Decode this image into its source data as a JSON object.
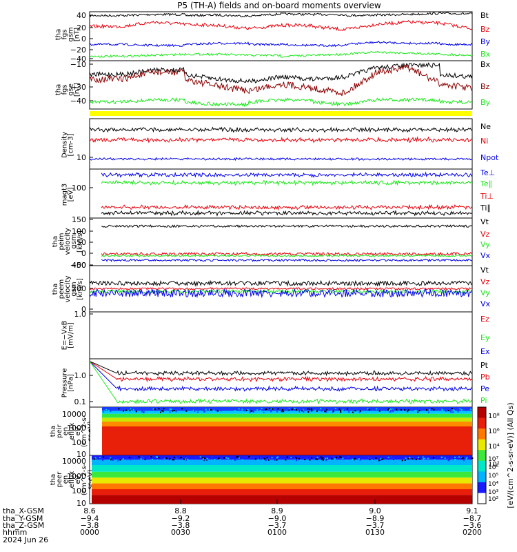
{
  "title": "P5 (TH-A) fields and on-board moments overview",
  "colors": {
    "black": "#000000",
    "red": "#e8000b",
    "green": "#19e819",
    "blue": "#0000e8",
    "yellow": "#ffff00",
    "darkred": "#8b0000"
  },
  "chart_data": [
    {
      "type": "line",
      "panel": "fgs",
      "ylabel": [
        "tha",
        "fgs",
        "gsm",
        "[nT]"
      ],
      "yticks": [
        "40",
        "20",
        "0",
        "−20",
        "−40"
      ],
      "ylim": [
        -45,
        45
      ],
      "series": [
        {
          "name": "Bt",
          "color": "black",
          "level": 38,
          "noise": 2,
          "drift": [
            0,
            0,
            2,
            0,
            1,
            -1,
            3,
            2,
            0,
            1,
            2,
            4,
            3
          ]
        },
        {
          "name": "Bz",
          "color": "red",
          "level": 18,
          "noise": 3,
          "drift": [
            0,
            0,
            8,
            4,
            2,
            -4,
            2,
            0,
            -6,
            4,
            8,
            6,
            -4
          ]
        },
        {
          "name": "By",
          "color": "blue",
          "level": -15,
          "noise": 2,
          "drift": [
            0,
            0,
            -2,
            0,
            2,
            0,
            0,
            -2,
            0,
            4,
            2,
            0,
            0
          ]
        },
        {
          "name": "Bx",
          "color": "green",
          "level": -37,
          "noise": 2,
          "drift": [
            0,
            0,
            2,
            4,
            4,
            2,
            0,
            2,
            4,
            8,
            6,
            4,
            2
          ]
        }
      ]
    },
    {
      "type": "line",
      "panel": "fgs_gse",
      "ylabel": [
        "tha",
        "fgs",
        "gse",
        "[nT]"
      ],
      "yticks": [
        "−10",
        "−30",
        "−40"
      ],
      "ylim": [
        -50,
        -8
      ],
      "series": [
        {
          "name": "Bx",
          "color": "black",
          "level": -20,
          "noise": 2,
          "drift": [
            0,
            0,
            4,
            0,
            -4,
            -6,
            -2,
            -4,
            -2,
            6,
            8,
            0,
            -2
          ]
        },
        {
          "name": "Bz",
          "color": "darkred",
          "level": -24,
          "noise": 3,
          "drift": [
            0,
            0,
            6,
            0,
            -6,
            -10,
            -4,
            -8,
            -12,
            6,
            10,
            -4,
            -8
          ]
        },
        {
          "name": "By",
          "color": "green",
          "level": -44,
          "noise": 1.5,
          "drift": [
            0,
            0,
            2,
            0,
            -2,
            0,
            2,
            0,
            -2,
            2,
            2,
            0,
            0
          ]
        }
      ]
    },
    {
      "type": "line",
      "panel": "density",
      "ylabel": [
        "Density",
        "[cm-3]"
      ],
      "yticks": [
        "10"
      ],
      "scale": "log",
      "series": [
        {
          "name": "Ne",
          "color": "black",
          "value": "~26",
          "noise": 1.5
        },
        {
          "name": "Ni",
          "color": "red",
          "value": "~18",
          "noise": 1.5
        },
        {
          "name": "Npot",
          "color": "blue",
          "value": "~9",
          "noise": 0.3
        }
      ]
    },
    {
      "type": "line",
      "panel": "temperature",
      "ylabel": [
        "magt3",
        "[eV]"
      ],
      "yticks": [
        "100"
      ],
      "scale": "log",
      "series": [
        {
          "name": "Te⊥",
          "color": "blue",
          "value": "~130"
        },
        {
          "name": "Te∥",
          "color": "green",
          "value": "~110"
        },
        {
          "name": "Ti⊥",
          "color": "red",
          "value": "~40"
        },
        {
          "name": "Ti∥",
          "color": "black",
          "value": "~33"
        }
      ]
    },
    {
      "type": "line",
      "panel": "peim_velocity",
      "ylabel": [
        "tha",
        "peim",
        "velocity",
        "gsm",
        "[km/s]"
      ],
      "yticks": [
        "150",
        "100",
        "50",
        "0",
        "−50",
        "−100"
      ],
      "ylim": [
        -110,
        155
      ],
      "series": [
        {
          "name": "Vt",
          "color": "black",
          "level": 110,
          "noise": 6
        },
        {
          "name": "Vz",
          "color": "red",
          "level": -45,
          "noise": 8
        },
        {
          "name": "Vy",
          "color": "green",
          "level": -55,
          "noise": 5
        },
        {
          "name": "Vx",
          "color": "blue",
          "level": -80,
          "noise": 6
        }
      ]
    },
    {
      "type": "line",
      "panel": "peem_velocity",
      "ylabel": [
        "tha",
        "peem",
        "velocity",
        "gsm",
        "[km/s]"
      ],
      "yticks": [
        "400",
        "200",
        "0",
        "−200",
        "−400"
      ],
      "ylim": [
        -420,
        420
      ],
      "series": [
        {
          "name": "Vt",
          "color": "black",
          "level": 100,
          "noise": 40
        },
        {
          "name": "Vz",
          "color": "red",
          "level": 0,
          "noise": 20
        },
        {
          "name": "Vy",
          "color": "green",
          "level": -50,
          "noise": 30
        },
        {
          "name": "Vx",
          "color": "blue",
          "level": -80,
          "noise": 70
        }
      ]
    },
    {
      "type": "line",
      "panel": "efield",
      "ylabel": [
        "E=−VxB",
        "[mV/m]"
      ],
      "yticks": [
        "1.0"
      ],
      "series": [
        {
          "name": "Ez",
          "color": "red"
        },
        {
          "name": "Ey",
          "color": "green"
        },
        {
          "name": "Ex",
          "color": "blue"
        }
      ]
    },
    {
      "type": "line",
      "panel": "pressure",
      "ylabel": [
        "Pressure",
        "[nPa]"
      ],
      "yticks": [
        "1.0",
        "0.1"
      ],
      "scale": "log",
      "series": [
        {
          "name": "Pt",
          "color": "black",
          "value": "~1.1"
        },
        {
          "name": "Pb",
          "color": "red",
          "value": "~0.8"
        },
        {
          "name": "Pe",
          "color": "blue",
          "value": "~0.25"
        },
        {
          "name": "Pi",
          "color": "green",
          "value": "~0.1"
        }
      ]
    },
    {
      "type": "heatmap",
      "panel": "peir",
      "ylabel": [
        "tha",
        "peir",
        "en",
        "eflux",
        "eV",
        "(cm^2-s-",
        "sr-eV)"
      ],
      "yticks": [
        "10000",
        "1000",
        "100",
        "10"
      ]
    },
    {
      "type": "heatmap",
      "panel": "peer",
      "ylabel": [
        "tha",
        "peer",
        "en",
        "eflux",
        "eV",
        "(cm^2-s-",
        "sr-eV)"
      ],
      "yticks": [
        "10000",
        "1000",
        "100",
        "10"
      ]
    }
  ],
  "colorbar": {
    "label": "[eV/(cm^2-s-sr-eV)] (All Qs)",
    "top_ticks": [
      "10⁸",
      "10⁶",
      "10⁴",
      "10²"
    ],
    "bottom_ticks": [
      "10⁸",
      "10⁷",
      "10⁶",
      "10⁵",
      "10⁴",
      "10³",
      "10²"
    ]
  },
  "xaxis": {
    "rows": [
      {
        "label": "tha_X-GSM",
        "values": [
          "8.6",
          "8.8",
          "8.9",
          "9.0",
          "9.1"
        ]
      },
      {
        "label": "tha_Y-GSM",
        "values": [
          "−9.4",
          "−9.2",
          "−9.0",
          "−8.9",
          "−8.7"
        ]
      },
      {
        "label": "tha_Z-GSM",
        "values": [
          "−3.8",
          "−3.8",
          "−3.7",
          "−3.7",
          "−3.6"
        ]
      },
      {
        "label": "hhmm",
        "values": [
          "0000",
          "0030",
          "0100",
          "0130",
          "0200"
        ]
      }
    ],
    "date": "2024 Jun 26"
  }
}
